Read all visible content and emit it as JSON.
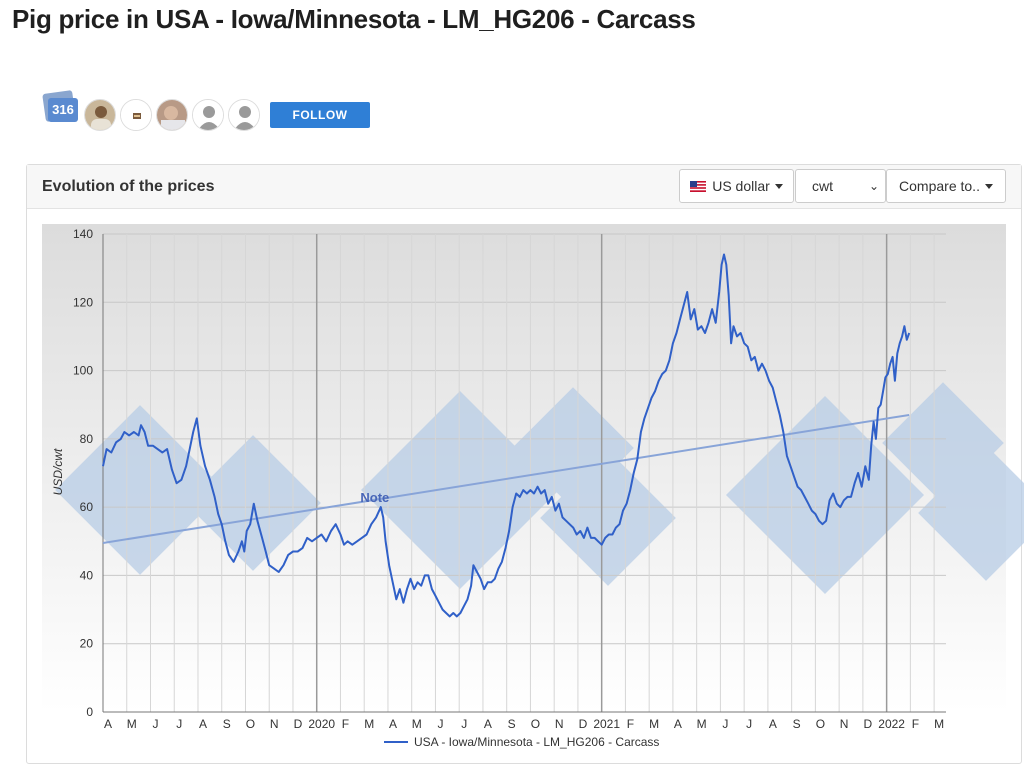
{
  "page": {
    "title": "Pig price in USA - Iowa/Minnesota - LM_HG206 - Carcass"
  },
  "followers": {
    "count": "316",
    "follow_label": "FOLLOW"
  },
  "panel": {
    "title": "Evolution of the prices",
    "currency_label": "US dollar",
    "unit_label": "cwt",
    "compare_label": "Compare to.."
  },
  "colors": {
    "series": "#3060c8",
    "trend": "#88a4d8",
    "follow": "#2f7fd6",
    "watermark": "#b8cde6"
  },
  "chart_data": {
    "type": "line",
    "ylabel": "USD/cwt",
    "ylim": [
      0,
      140
    ],
    "yticks": [
      0,
      20,
      40,
      60,
      80,
      100,
      120,
      140
    ],
    "xlim": [
      0,
      35.5
    ],
    "grid": true,
    "legend_position": "bottom-center",
    "x_ticks": [
      {
        "x": 0,
        "label": "A"
      },
      {
        "x": 1,
        "label": "M"
      },
      {
        "x": 2,
        "label": "J"
      },
      {
        "x": 3,
        "label": "J"
      },
      {
        "x": 4,
        "label": "A"
      },
      {
        "x": 5,
        "label": "S"
      },
      {
        "x": 6,
        "label": "O"
      },
      {
        "x": 7,
        "label": "N"
      },
      {
        "x": 8,
        "label": "D"
      },
      {
        "x": 9,
        "label": "2020"
      },
      {
        "x": 10,
        "label": "F"
      },
      {
        "x": 11,
        "label": "M"
      },
      {
        "x": 12,
        "label": "A"
      },
      {
        "x": 13,
        "label": "M"
      },
      {
        "x": 14,
        "label": "J"
      },
      {
        "x": 15,
        "label": "J"
      },
      {
        "x": 16,
        "label": "A"
      },
      {
        "x": 17,
        "label": "S"
      },
      {
        "x": 18,
        "label": "O"
      },
      {
        "x": 19,
        "label": "N"
      },
      {
        "x": 20,
        "label": "D"
      },
      {
        "x": 21,
        "label": "2021"
      },
      {
        "x": 22,
        "label": "F"
      },
      {
        "x": 23,
        "label": "M"
      },
      {
        "x": 24,
        "label": "A"
      },
      {
        "x": 25,
        "label": "M"
      },
      {
        "x": 26,
        "label": "J"
      },
      {
        "x": 27,
        "label": "J"
      },
      {
        "x": 28,
        "label": "A"
      },
      {
        "x": 29,
        "label": "S"
      },
      {
        "x": 30,
        "label": "O"
      },
      {
        "x": 31,
        "label": "N"
      },
      {
        "x": 32,
        "label": "D"
      },
      {
        "x": 33,
        "label": "2022"
      },
      {
        "x": 34,
        "label": "F"
      },
      {
        "x": 35,
        "label": "M"
      }
    ],
    "year_boundaries": [
      9,
      21,
      33
    ],
    "series": [
      {
        "name": "USA - Iowa/Minnesota - LM_HG206 - Carcass",
        "points": [
          [
            0.0,
            72
          ],
          [
            0.15,
            77
          ],
          [
            0.35,
            76
          ],
          [
            0.55,
            79
          ],
          [
            0.75,
            80
          ],
          [
            0.9,
            82
          ],
          [
            1.1,
            81
          ],
          [
            1.3,
            82
          ],
          [
            1.5,
            81
          ],
          [
            1.6,
            84
          ],
          [
            1.75,
            82
          ],
          [
            1.9,
            78
          ],
          [
            2.1,
            78
          ],
          [
            2.3,
            77
          ],
          [
            2.5,
            76
          ],
          [
            2.7,
            77
          ],
          [
            2.9,
            71
          ],
          [
            3.1,
            67
          ],
          [
            3.3,
            68
          ],
          [
            3.5,
            72
          ],
          [
            3.65,
            77
          ],
          [
            3.8,
            82
          ],
          [
            3.95,
            86
          ],
          [
            4.1,
            78
          ],
          [
            4.3,
            72
          ],
          [
            4.5,
            68
          ],
          [
            4.7,
            63
          ],
          [
            4.85,
            58
          ],
          [
            5.0,
            55
          ],
          [
            5.15,
            50
          ],
          [
            5.3,
            46
          ],
          [
            5.5,
            44
          ],
          [
            5.7,
            47
          ],
          [
            5.85,
            50
          ],
          [
            5.95,
            47
          ],
          [
            6.05,
            53
          ],
          [
            6.2,
            55
          ],
          [
            6.35,
            61
          ],
          [
            6.5,
            56
          ],
          [
            6.7,
            51
          ],
          [
            6.85,
            47
          ],
          [
            7.0,
            43
          ],
          [
            7.2,
            42
          ],
          [
            7.4,
            41
          ],
          [
            7.6,
            43
          ],
          [
            7.8,
            46
          ],
          [
            8.0,
            47
          ],
          [
            8.2,
            47
          ],
          [
            8.4,
            48
          ],
          [
            8.6,
            51
          ],
          [
            8.8,
            50
          ],
          [
            9.0,
            51
          ],
          [
            9.2,
            52
          ],
          [
            9.4,
            50
          ],
          [
            9.6,
            53
          ],
          [
            9.8,
            55
          ],
          [
            10.0,
            52
          ],
          [
            10.15,
            49
          ],
          [
            10.3,
            50
          ],
          [
            10.5,
            49
          ],
          [
            10.7,
            50
          ],
          [
            10.9,
            51
          ],
          [
            11.1,
            52
          ],
          [
            11.3,
            55
          ],
          [
            11.5,
            57
          ],
          [
            11.7,
            60
          ],
          [
            11.8,
            57
          ],
          [
            11.9,
            50
          ],
          [
            12.05,
            43
          ],
          [
            12.2,
            38
          ],
          [
            12.35,
            33
          ],
          [
            12.5,
            36
          ],
          [
            12.65,
            32
          ],
          [
            12.8,
            36
          ],
          [
            12.95,
            39
          ],
          [
            13.1,
            36
          ],
          [
            13.25,
            38
          ],
          [
            13.4,
            37
          ],
          [
            13.55,
            40
          ],
          [
            13.7,
            40
          ],
          [
            13.85,
            36
          ],
          [
            14.0,
            34
          ],
          [
            14.15,
            32
          ],
          [
            14.3,
            30
          ],
          [
            14.45,
            29
          ],
          [
            14.6,
            28
          ],
          [
            14.75,
            29
          ],
          [
            14.9,
            28
          ],
          [
            15.05,
            29
          ],
          [
            15.2,
            31
          ],
          [
            15.35,
            33
          ],
          [
            15.5,
            37
          ],
          [
            15.6,
            43
          ],
          [
            15.75,
            41
          ],
          [
            15.9,
            39
          ],
          [
            16.05,
            36
          ],
          [
            16.2,
            38
          ],
          [
            16.35,
            38
          ],
          [
            16.5,
            39
          ],
          [
            16.65,
            42
          ],
          [
            16.8,
            44
          ],
          [
            16.95,
            48
          ],
          [
            17.1,
            53
          ],
          [
            17.25,
            60
          ],
          [
            17.4,
            64
          ],
          [
            17.55,
            63
          ],
          [
            17.7,
            65
          ],
          [
            17.85,
            64
          ],
          [
            18.0,
            65
          ],
          [
            18.15,
            64
          ],
          [
            18.3,
            66
          ],
          [
            18.45,
            64
          ],
          [
            18.6,
            65
          ],
          [
            18.75,
            61
          ],
          [
            18.9,
            63
          ],
          [
            19.05,
            59
          ],
          [
            19.2,
            61
          ],
          [
            19.35,
            57
          ],
          [
            19.5,
            56
          ],
          [
            19.65,
            55
          ],
          [
            19.8,
            54
          ],
          [
            19.95,
            52
          ],
          [
            20.1,
            53
          ],
          [
            20.25,
            51
          ],
          [
            20.4,
            54
          ],
          [
            20.55,
            51
          ],
          [
            20.7,
            51
          ],
          [
            20.85,
            50
          ],
          [
            21.0,
            49
          ],
          [
            21.15,
            51
          ],
          [
            21.3,
            52
          ],
          [
            21.45,
            52
          ],
          [
            21.6,
            54
          ],
          [
            21.75,
            55
          ],
          [
            21.9,
            59
          ],
          [
            22.05,
            61
          ],
          [
            22.2,
            65
          ],
          [
            22.35,
            70
          ],
          [
            22.5,
            74
          ],
          [
            22.65,
            82
          ],
          [
            22.8,
            86
          ],
          [
            22.95,
            89
          ],
          [
            23.1,
            92
          ],
          [
            23.25,
            94
          ],
          [
            23.4,
            97
          ],
          [
            23.55,
            99
          ],
          [
            23.7,
            100
          ],
          [
            23.85,
            103
          ],
          [
            24.0,
            108
          ],
          [
            24.15,
            111
          ],
          [
            24.3,
            115
          ],
          [
            24.45,
            119
          ],
          [
            24.6,
            123
          ],
          [
            24.75,
            115
          ],
          [
            24.9,
            118
          ],
          [
            25.05,
            112
          ],
          [
            25.2,
            113
          ],
          [
            25.35,
            111
          ],
          [
            25.5,
            114
          ],
          [
            25.65,
            118
          ],
          [
            25.8,
            114
          ],
          [
            25.95,
            123
          ],
          [
            26.05,
            131
          ],
          [
            26.15,
            134
          ],
          [
            26.25,
            131
          ],
          [
            26.35,
            122
          ],
          [
            26.45,
            108
          ],
          [
            26.55,
            113
          ],
          [
            26.7,
            110
          ],
          [
            26.85,
            111
          ],
          [
            27.0,
            108
          ],
          [
            27.15,
            107
          ],
          [
            27.3,
            103
          ],
          [
            27.45,
            104
          ],
          [
            27.6,
            100
          ],
          [
            27.75,
            102
          ],
          [
            27.9,
            100
          ],
          [
            28.05,
            97
          ],
          [
            28.2,
            95
          ],
          [
            28.35,
            91
          ],
          [
            28.5,
            87
          ],
          [
            28.65,
            82
          ],
          [
            28.8,
            75
          ],
          [
            28.95,
            72
          ],
          [
            29.1,
            69
          ],
          [
            29.25,
            66
          ],
          [
            29.4,
            65
          ],
          [
            29.55,
            63
          ],
          [
            29.7,
            61
          ],
          [
            29.85,
            59
          ],
          [
            30.0,
            58
          ],
          [
            30.15,
            56
          ],
          [
            30.3,
            55
          ],
          [
            30.45,
            56
          ],
          [
            30.6,
            62
          ],
          [
            30.75,
            64
          ],
          [
            30.9,
            61
          ],
          [
            31.05,
            60
          ],
          [
            31.2,
            62
          ],
          [
            31.35,
            63
          ],
          [
            31.5,
            63
          ],
          [
            31.65,
            67
          ],
          [
            31.8,
            70
          ],
          [
            31.95,
            66
          ],
          [
            32.1,
            72
          ],
          [
            32.25,
            68
          ],
          [
            32.35,
            78
          ],
          [
            32.45,
            85
          ],
          [
            32.55,
            80
          ],
          [
            32.65,
            89
          ],
          [
            32.75,
            90
          ],
          [
            32.85,
            94
          ],
          [
            32.95,
            98
          ],
          [
            33.05,
            99
          ],
          [
            33.15,
            102
          ],
          [
            33.25,
            104
          ],
          [
            33.35,
            97
          ],
          [
            33.45,
            105
          ],
          [
            33.55,
            108
          ],
          [
            33.65,
            110
          ],
          [
            33.75,
            113
          ],
          [
            33.85,
            109
          ],
          [
            33.95,
            111
          ]
        ]
      }
    ],
    "trendline": {
      "start": [
        0,
        49.5
      ],
      "end": [
        33.95,
        87
      ]
    },
    "annotations": [
      {
        "label": "Note",
        "x": 11.7,
        "y": 60
      }
    ]
  }
}
